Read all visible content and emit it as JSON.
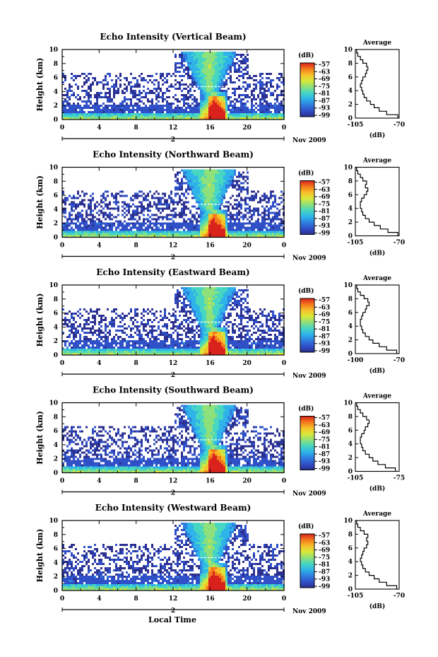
{
  "figure": {
    "xlabel": "Local Time",
    "date_label": "Nov 2009",
    "day_marker": "2",
    "colorbar_unit": "(dB)",
    "colorbar_ticks": [
      "-57",
      "-63",
      "-69",
      "-75",
      "-81",
      "-87",
      "-93",
      "-99"
    ],
    "colormap": [
      "#2b2f8f",
      "#3050c8",
      "#2f7fe0",
      "#2eb4e8",
      "#47d6c2",
      "#8ee07a",
      "#d8e83a",
      "#f6c02a",
      "#f47a1c",
      "#d9221c"
    ],
    "average_title": "Average",
    "average_xlabel": "(dB)"
  },
  "chart_data": [
    {
      "type": "heatmap",
      "title": "Echo Intensity (Vertical Beam)",
      "ylabel": "Height (km)",
      "x_ticks": [
        "0",
        "4",
        "8",
        "12",
        "16",
        "20",
        "0"
      ],
      "y_ticks": [
        "0",
        "2",
        "4",
        "6",
        "8",
        "10"
      ],
      "xlim": [
        0,
        24
      ],
      "ylim": [
        0,
        10
      ],
      "zlim": [
        -99,
        -57
      ],
      "average": {
        "title": "Average",
        "xlabel": "(dB)",
        "x_ticks": [
          "-105",
          "-70"
        ],
        "xlim": [
          -105,
          -70
        ],
        "y_ticks": [
          "0",
          "2",
          "4",
          "6",
          "8",
          "10"
        ],
        "height_km": [
          0,
          0.5,
          1,
          1.5,
          2,
          2.5,
          3,
          3.5,
          4,
          4.5,
          5,
          5.5,
          6,
          6.5,
          7,
          7.5,
          8,
          8.5,
          9,
          9.5,
          10
        ],
        "values_db": [
          -71,
          -80,
          -86,
          -90,
          -93,
          -96,
          -98,
          -99,
          -100,
          -101,
          -100,
          -99,
          -97,
          -96,
          -95,
          -96,
          -99,
          -101,
          -103,
          -104,
          -105
        ]
      }
    },
    {
      "type": "heatmap",
      "title": "Echo Intensity (Northward Beam)",
      "ylabel": "Height (km)",
      "x_ticks": [
        "0",
        "4",
        "8",
        "12",
        "16",
        "20",
        "0"
      ],
      "y_ticks": [
        "0",
        "2",
        "4",
        "6",
        "8",
        "10"
      ],
      "xlim": [
        0,
        24
      ],
      "ylim": [
        0,
        10
      ],
      "zlim": [
        -99,
        -57
      ],
      "average": {
        "title": "Average",
        "xlabel": "(dB)",
        "x_ticks": [
          "-105",
          "-70"
        ],
        "xlim": [
          -105,
          -70
        ],
        "y_ticks": [
          "0",
          "2",
          "4",
          "6",
          "8",
          "10"
        ],
        "height_km": [
          0,
          0.5,
          1,
          1.5,
          2,
          2.5,
          3,
          3.5,
          4,
          4.5,
          5,
          5.5,
          6,
          6.5,
          7,
          7.5,
          8,
          8.5,
          9,
          9.5,
          10
        ],
        "values_db": [
          -71,
          -79,
          -85,
          -90,
          -94,
          -97,
          -99,
          -100,
          -101,
          -101,
          -100,
          -98,
          -96,
          -95,
          -97,
          -96,
          -99,
          -101,
          -103,
          -104,
          -105
        ]
      }
    },
    {
      "type": "heatmap",
      "title": "Echo Intensity (Eastward Beam)",
      "ylabel": "Height (km)",
      "x_ticks": [
        "0",
        "4",
        "8",
        "12",
        "16",
        "20",
        "0"
      ],
      "y_ticks": [
        "0",
        "2",
        "4",
        "6",
        "8",
        "10"
      ],
      "xlim": [
        0,
        24
      ],
      "ylim": [
        0,
        10
      ],
      "zlim": [
        -99,
        -57
      ],
      "average": {
        "title": "Average",
        "xlabel": "(dB)",
        "x_ticks": [
          "-100",
          "-70"
        ],
        "xlim": [
          -105,
          -70
        ],
        "y_ticks": [
          "0",
          "2",
          "4",
          "6",
          "8",
          "10"
        ],
        "height_km": [
          0,
          0.5,
          1,
          1.5,
          2,
          2.5,
          3,
          3.5,
          4,
          4.5,
          5,
          5.5,
          6,
          6.5,
          7,
          7.5,
          8,
          8.5,
          9,
          9.5,
          10
        ],
        "values_db": [
          -72,
          -80,
          -86,
          -91,
          -94,
          -97,
          -99,
          -100,
          -101,
          -101,
          -100,
          -99,
          -97,
          -96,
          -94,
          -95,
          -98,
          -101,
          -103,
          -104,
          -105
        ]
      }
    },
    {
      "type": "heatmap",
      "title": "Echo Intensity (Southward Beam)",
      "ylabel": "Height (km)",
      "x_ticks": [
        "0",
        "4",
        "8",
        "12",
        "16",
        "20",
        "0"
      ],
      "y_ticks": [
        "0",
        "2",
        "4",
        "6",
        "8",
        "10"
      ],
      "xlim": [
        0,
        24
      ],
      "ylim": [
        0,
        10
      ],
      "zlim": [
        -99,
        -57
      ],
      "average": {
        "title": "Average",
        "xlabel": "(dB)",
        "x_ticks": [
          "-105",
          "-75"
        ],
        "xlim": [
          -105,
          -70
        ],
        "y_ticks": [
          "0",
          "2",
          "4",
          "6",
          "8",
          "10"
        ],
        "height_km": [
          0,
          0.5,
          1,
          1.5,
          2,
          2.5,
          3,
          3.5,
          4,
          4.5,
          5,
          5.5,
          6,
          6.5,
          7,
          7.5,
          8,
          8.5,
          9,
          9.5,
          10
        ],
        "values_db": [
          -73,
          -81,
          -87,
          -91,
          -94,
          -97,
          -99,
          -100,
          -101,
          -101,
          -100,
          -98,
          -97,
          -95,
          -94,
          -96,
          -99,
          -101,
          -103,
          -104,
          -105
        ]
      }
    },
    {
      "type": "heatmap",
      "title": "Echo Intensity (Westward Beam)",
      "ylabel": "Height (km)",
      "x_ticks": [
        "0",
        "4",
        "8",
        "12",
        "16",
        "20",
        "0"
      ],
      "y_ticks": [
        "0",
        "2",
        "4",
        "6",
        "8",
        "10"
      ],
      "xlim": [
        0,
        24
      ],
      "ylim": [
        0,
        10
      ],
      "zlim": [
        -99,
        -57
      ],
      "average": {
        "title": "Average",
        "xlabel": "(dB)",
        "x_ticks": [
          "-105",
          "-70"
        ],
        "xlim": [
          -105,
          -70
        ],
        "y_ticks": [
          "0",
          "2",
          "4",
          "6",
          "8",
          "10"
        ],
        "height_km": [
          0,
          0.5,
          1,
          1.5,
          2,
          2.5,
          3,
          3.5,
          4,
          4.5,
          5,
          5.5,
          6,
          6.5,
          7,
          7.5,
          8,
          8.5,
          9,
          9.5,
          10
        ],
        "values_db": [
          -72,
          -80,
          -86,
          -90,
          -94,
          -97,
          -99,
          -100,
          -101,
          -100,
          -99,
          -98,
          -96,
          -95,
          -96,
          -95,
          -98,
          -101,
          -103,
          -104,
          -105
        ]
      }
    }
  ]
}
